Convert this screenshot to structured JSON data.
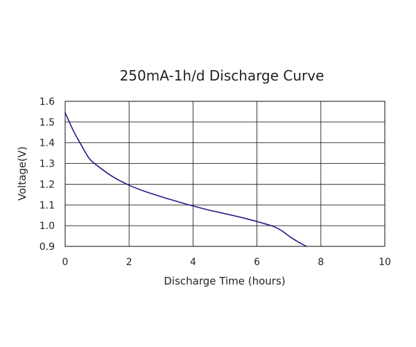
{
  "chart_data": {
    "type": "line",
    "title": "250mA-1h/d Discharge Curve",
    "xlabel": "Discharge Time (hours)",
    "ylabel": "Voltage(V)",
    "xlim": [
      0,
      10
    ],
    "ylim": [
      0.9,
      1.6
    ],
    "x_ticks": [
      "0",
      "2",
      "4",
      "6",
      "8",
      "10"
    ],
    "y_ticks": [
      "0.9",
      "1.0",
      "1.1",
      "1.2",
      "1.3",
      "1.4",
      "1.5",
      "1.6"
    ],
    "grid": true,
    "line_color": "#1f1a8a",
    "series": [
      {
        "x": [
          0,
          0.25,
          0.5,
          0.75,
          1.0,
          1.5,
          2.0,
          2.5,
          3.0,
          3.5,
          4.0,
          4.5,
          5.0,
          5.5,
          6.0,
          6.5,
          6.75,
          7.0,
          7.25,
          7.55
        ],
        "y": [
          1.545,
          1.46,
          1.39,
          1.325,
          1.29,
          1.235,
          1.195,
          1.165,
          1.14,
          1.117,
          1.095,
          1.075,
          1.058,
          1.04,
          1.02,
          0.997,
          0.978,
          0.95,
          0.925,
          0.9
        ]
      }
    ]
  }
}
